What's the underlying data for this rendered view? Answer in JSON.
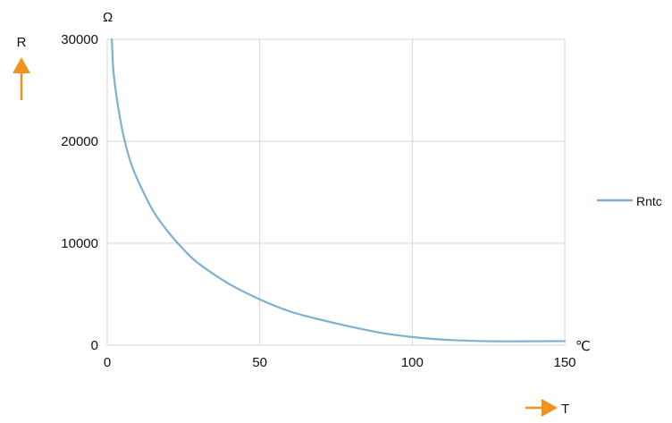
{
  "chart_data": {
    "type": "line",
    "title": "",
    "xlabel": "T",
    "ylabel": "R",
    "x_unit": "℃",
    "y_unit": "Ω",
    "xlim": [
      0,
      150
    ],
    "ylim": [
      0,
      30000
    ],
    "x_ticks": [
      0,
      50,
      100,
      150
    ],
    "y_ticks": [
      0,
      10000,
      20000,
      30000
    ],
    "x_tick_labels": [
      "0",
      "50",
      "100",
      "150"
    ],
    "y_tick_labels": [
      "0",
      "10000",
      "20000",
      "30000"
    ],
    "grid": true,
    "legend_position": "right",
    "axis_arrow_color": "#f0921e",
    "series": [
      {
        "name": "Rntc",
        "color": "#7eb0cf",
        "x": [
          1.5,
          2,
          3,
          5,
          7.5,
          10,
          15,
          20,
          25,
          30,
          40,
          50,
          60,
          70,
          80,
          90,
          100,
          110,
          120,
          130,
          140,
          150
        ],
        "y": [
          30000,
          27000,
          24500,
          21000,
          18100,
          16200,
          13200,
          11100,
          9400,
          8000,
          6000,
          4500,
          3300,
          2500,
          1800,
          1200,
          800,
          550,
          420,
          380,
          390,
          400
        ]
      }
    ]
  }
}
